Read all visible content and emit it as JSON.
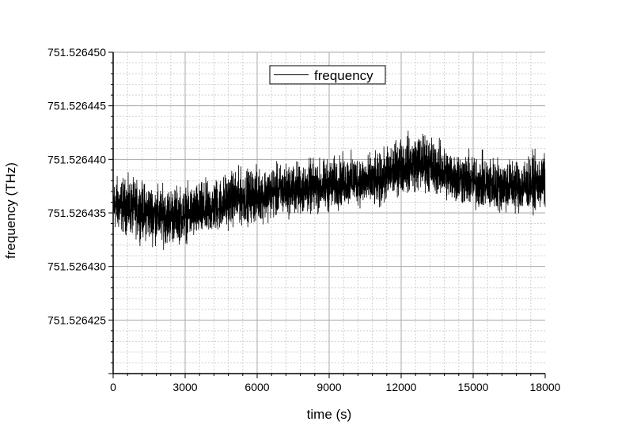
{
  "chart_data": {
    "type": "line",
    "xlabel": "time (s)",
    "ylabel": "frequency (THz)",
    "xlim": [
      0,
      18000
    ],
    "ylim": [
      751.52642,
      751.52645
    ],
    "x_ticks": [
      0,
      3000,
      6000,
      9000,
      12000,
      15000,
      18000
    ],
    "x_tick_labels": [
      "0",
      "3000",
      "6000",
      "9000",
      "12000",
      "15000",
      "18000"
    ],
    "y_ticks": [
      751.526425,
      751.52643,
      751.526435,
      751.52644,
      751.526445,
      751.52645
    ],
    "y_tick_labels": [
      "751.526425",
      "751.526430",
      "751.526435",
      "751.526440",
      "751.526445",
      "751.526450"
    ],
    "grid": true,
    "legend_position": "top-center",
    "series": [
      {
        "name": "frequency",
        "color": "#000000",
        "x": [
          0,
          1000,
          2000,
          3000,
          4000,
          5000,
          6000,
          7000,
          8000,
          9000,
          10000,
          11000,
          12000,
          13000,
          14000,
          15000,
          16000,
          17000,
          18000
        ],
        "mean": [
          751.5264357,
          751.5264353,
          751.5264347,
          751.5264348,
          751.5264352,
          751.5264362,
          751.5264365,
          751.526437,
          751.5264372,
          751.5264375,
          751.526438,
          751.5264378,
          751.5264393,
          751.5264395,
          751.5264385,
          751.5264378,
          751.5264375,
          751.5264375,
          751.5264378
        ],
        "min": [
          751.5264325,
          751.5264318,
          751.526431,
          751.5264315,
          751.526432,
          751.526433,
          751.5264333,
          751.5264338,
          751.526434,
          751.5264343,
          751.526435,
          751.5264345,
          751.526436,
          751.5264362,
          751.5264352,
          751.5264345,
          751.5264342,
          751.5264342,
          751.5264345
        ],
        "max": [
          751.5264395,
          751.526439,
          751.5264385,
          751.5264385,
          751.526439,
          751.52644,
          751.5264402,
          751.5264405,
          751.5264408,
          751.526441,
          751.5264415,
          751.5264413,
          751.5264432,
          751.5264438,
          751.526442,
          751.5264415,
          751.5264412,
          751.5264412,
          751.5264415
        ]
      }
    ]
  }
}
